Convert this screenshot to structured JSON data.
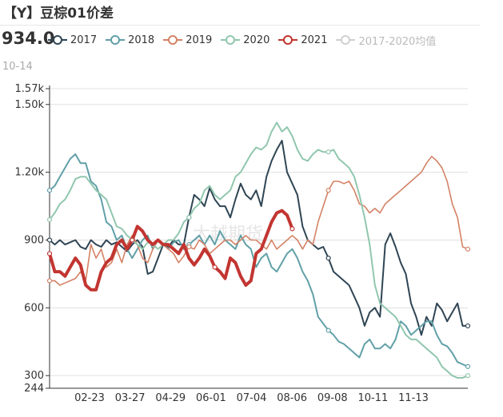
{
  "header": {
    "title": "【Y】豆棕01价差",
    "current_value": "934.0",
    "current_date": "10-14"
  },
  "chart_data": {
    "type": "line",
    "title": "【Y】豆棕01价差",
    "ylim": [
      244,
      1570
    ],
    "ytick_values": [
      244,
      300,
      600,
      900,
      1200,
      1500,
      1570
    ],
    "ytick_labels": [
      "244",
      "300",
      "600",
      "900",
      "1.20k",
      "1.50k",
      "1.57k"
    ],
    "x_labels": [
      "02-23",
      "03-27",
      "04-29",
      "06-01",
      "07-04",
      "08-06",
      "09-08",
      "10-11",
      "11-13"
    ],
    "grid": true,
    "legend_position": "top",
    "watermark": "大越期货",
    "series": [
      {
        "name": "2017",
        "color": "#2f4554",
        "width": 2,
        "values": [
          900,
          880,
          900,
          880,
          890,
          900,
          870,
          860,
          900,
          880,
          870,
          900,
          880,
          890,
          870,
          850,
          880,
          900,
          870,
          750,
          760,
          820,
          880,
          870,
          900,
          880,
          880,
          1000,
          1100,
          1080,
          1050,
          1130,
          1080,
          1050,
          1050,
          1000,
          1080,
          1150,
          1100,
          1080,
          1120,
          1050,
          1180,
          1250,
          1300,
          1340,
          1200,
          1150,
          1100,
          960,
          900,
          880,
          860,
          870,
          820,
          760,
          740,
          720,
          700,
          650,
          600,
          520,
          580,
          600,
          560,
          880,
          930,
          870,
          800,
          750,
          620,
          560,
          480,
          560,
          520,
          620,
          590,
          540,
          580,
          620,
          520,
          520
        ]
      },
      {
        "name": "2018",
        "color": "#61a0a8",
        "width": 2,
        "values": [
          1120,
          1140,
          1180,
          1220,
          1260,
          1280,
          1240,
          1240,
          1160,
          1140,
          1080,
          980,
          960,
          900,
          920,
          860,
          820,
          860,
          900,
          920,
          860,
          900,
          880,
          860,
          890,
          900,
          860,
          880,
          900,
          920,
          880,
          920,
          880,
          940,
          900,
          880,
          860,
          920,
          880,
          860,
          780,
          820,
          840,
          780,
          760,
          800,
          840,
          860,
          820,
          760,
          720,
          660,
          560,
          530,
          500,
          480,
          450,
          440,
          420,
          400,
          380,
          440,
          460,
          420,
          420,
          440,
          420,
          460,
          540,
          520,
          480,
          500,
          520,
          540,
          540,
          480,
          440,
          430,
          400,
          360,
          350,
          340
        ]
      },
      {
        "name": "2019",
        "color": "#d48265",
        "width": 1.6,
        "values": [
          720,
          720,
          700,
          710,
          720,
          730,
          760,
          720,
          880,
          820,
          860,
          780,
          800,
          860,
          800,
          880,
          920,
          880,
          820,
          800,
          860,
          900,
          880,
          860,
          840,
          800,
          830,
          870,
          860,
          900,
          880,
          840,
          860,
          880,
          900,
          900,
          880,
          900,
          920,
          900,
          900,
          880,
          860,
          900,
          860,
          880,
          900,
          920,
          900,
          860,
          900,
          880,
          980,
          1050,
          1120,
          1160,
          1160,
          1150,
          1160,
          1120,
          1060,
          1050,
          1020,
          1040,
          1020,
          1060,
          1080,
          1100,
          1120,
          1140,
          1160,
          1180,
          1200,
          1240,
          1270,
          1250,
          1220,
          1160,
          1060,
          1000,
          870,
          860
        ]
      },
      {
        "name": "2020",
        "color": "#91c7ae",
        "width": 2,
        "values": [
          990,
          1020,
          1060,
          1080,
          1120,
          1170,
          1180,
          1180,
          1150,
          1120,
          1100,
          1080,
          1020,
          960,
          950,
          920,
          900,
          880,
          860,
          890,
          880,
          860,
          880,
          900,
          900,
          930,
          980,
          1000,
          1040,
          1060,
          1120,
          1140,
          1100,
          1080,
          1100,
          1120,
          1180,
          1200,
          1240,
          1280,
          1310,
          1300,
          1320,
          1380,
          1420,
          1380,
          1400,
          1360,
          1300,
          1260,
          1250,
          1280,
          1300,
          1290,
          1290,
          1300,
          1260,
          1240,
          1220,
          1180,
          1100,
          1000,
          880,
          700,
          620,
          600,
          580,
          560,
          520,
          480,
          460,
          460,
          440,
          420,
          400,
          380,
          340,
          320,
          300,
          290,
          290,
          300
        ]
      },
      {
        "name": "2021",
        "color": "#c23531",
        "width": 4,
        "values": [
          840,
          760,
          760,
          740,
          780,
          820,
          790,
          700,
          680,
          680,
          760,
          800,
          820,
          880,
          900,
          860,
          900,
          960,
          940,
          900,
          880,
          900,
          880,
          880,
          860,
          840,
          880,
          820,
          790,
          820,
          860,
          830,
          780,
          760,
          730,
          820,
          800,
          740,
          700,
          720,
          840,
          860,
          920,
          980,
          1020,
          1030,
          1010,
          950
        ]
      },
      {
        "name": "2017-2020均值",
        "color": "#d0d0d0",
        "width": 2,
        "values": []
      }
    ]
  }
}
